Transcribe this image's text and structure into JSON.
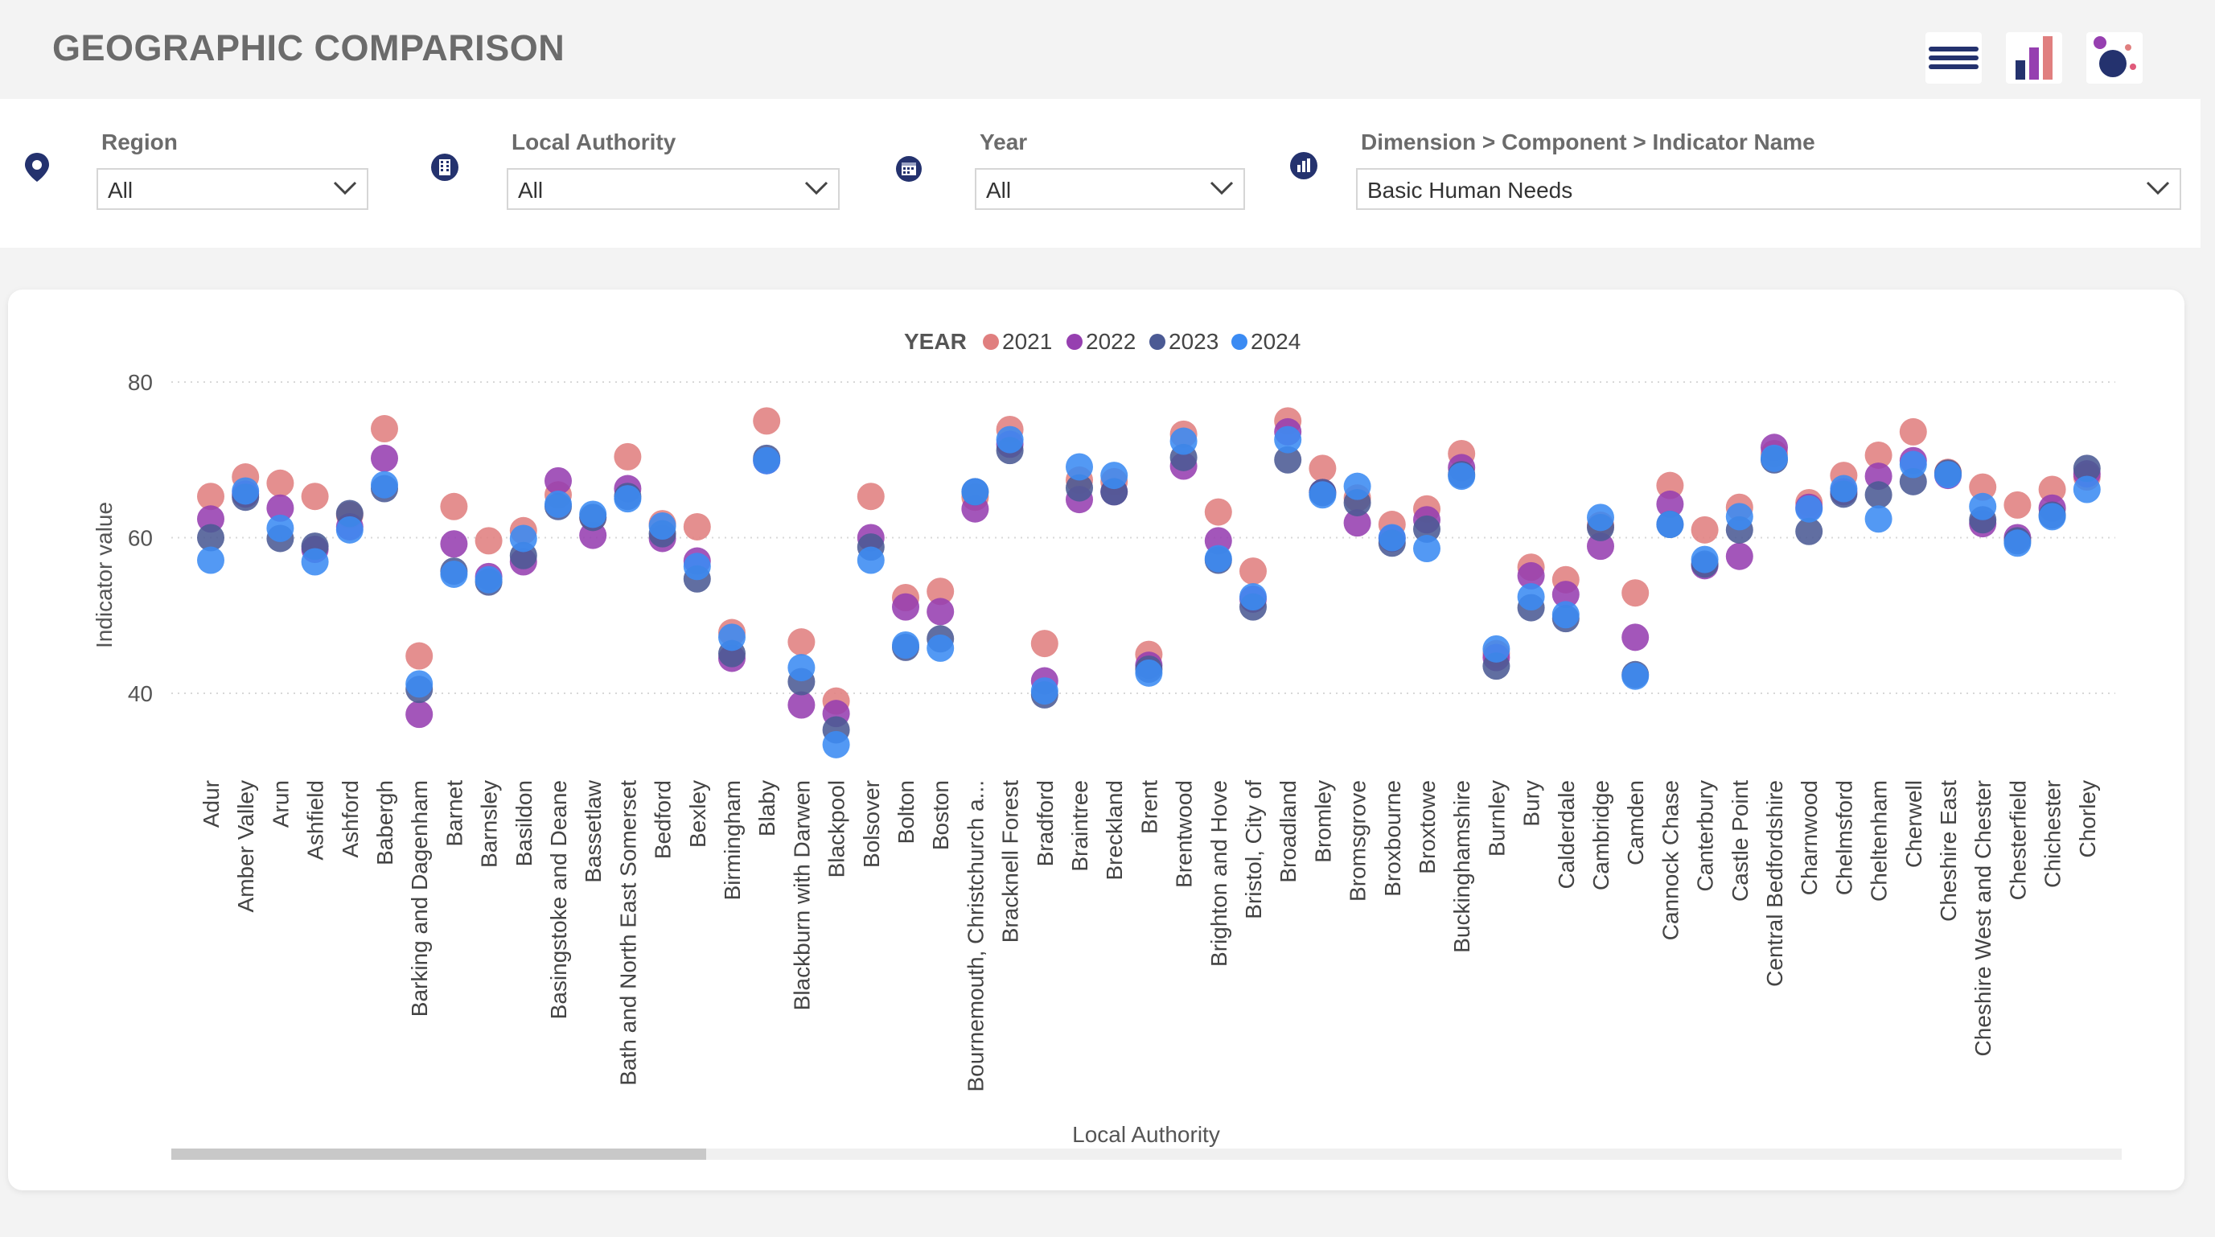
{
  "header": {
    "title": "GEOGRAPHIC COMPARISON",
    "buttons": [
      {
        "icon": "menu-icon"
      },
      {
        "icon": "bar-chart-icon"
      },
      {
        "icon": "bubble-chart-icon"
      }
    ]
  },
  "filters": {
    "region": {
      "label": "Region",
      "value": "All",
      "icon": "map-pin-icon"
    },
    "local_authority": {
      "label": "Local Authority",
      "value": "All",
      "icon": "building-icon"
    },
    "year": {
      "label": "Year",
      "value": "All",
      "icon": "calendar-icon"
    },
    "indicator": {
      "label": "Dimension > Component > Indicator Name",
      "value": "Basic Human Needs",
      "icon": "chart-icon"
    }
  },
  "colors": {
    "s2021": "#e07f7f",
    "s2022": "#963fb0",
    "s2023": "#4b5a94",
    "s2024": "#3b8bf3"
  },
  "chart_data": {
    "type": "scatter",
    "legend_title": "YEAR",
    "legend_position": "top-center",
    "xlabel": "Local Authority",
    "ylabel": "Indicator value",
    "yticks": [
      40,
      60,
      80
    ],
    "ylim": [
      32.5,
      81
    ],
    "grid": true,
    "categories": [
      "Adur",
      "Amber Valley",
      "Arun",
      "Ashfield",
      "Ashford",
      "Babergh",
      "Barking and Dagenham",
      "Barnet",
      "Barnsley",
      "Basildon",
      "Basingstoke and Deane",
      "Bassetlaw",
      "Bath and North East Somerset",
      "Bedford",
      "Bexley",
      "Birmingham",
      "Blaby",
      "Blackburn with Darwen",
      "Blackpool",
      "Bolsover",
      "Bolton",
      "Boston",
      "Bournemouth, Christchurch a...",
      "Bracknell Forest",
      "Bradford",
      "Braintree",
      "Breckland",
      "Brent",
      "Brentwood",
      "Brighton and Hove",
      "Bristol, City of",
      "Broadland",
      "Bromley",
      "Bromsgrove",
      "Broxbourne",
      "Broxtowe",
      "Buckinghamshire",
      "Burnley",
      "Bury",
      "Calderdale",
      "Cambridge",
      "Camden",
      "Cannock Chase",
      "Canterbury",
      "Castle Point",
      "Central Bedfordshire",
      "Charnwood",
      "Chelmsford",
      "Cheltenham",
      "Cherwell",
      "Cheshire East",
      "Cheshire West and Chester",
      "Chesterfield",
      "Chichester",
      "Chorley"
    ],
    "series": [
      {
        "name": "2021",
        "values": [
          65.3,
          67.8,
          67.0,
          65.3,
          62.9,
          74.0,
          44.8,
          64.0,
          59.6,
          60.9,
          65.5,
          62.6,
          70.4,
          61.8,
          61.4,
          47.8,
          75.0,
          46.6,
          39.0,
          65.3,
          52.3,
          53.1,
          65.2,
          73.9,
          46.4,
          67.4,
          67.2,
          45.0,
          73.3,
          63.3,
          55.7,
          75.0,
          68.9,
          65.1,
          61.7,
          63.7,
          70.8,
          45.1,
          56.2,
          54.6,
          61.6,
          52.9,
          66.7,
          61.0,
          63.9,
          70.8,
          64.5,
          68.0,
          70.6,
          73.6,
          68.4,
          66.5,
          64.2,
          66.2,
          67.8
        ]
      },
      {
        "name": "2022",
        "values": [
          62.4,
          65.6,
          63.8,
          58.5,
          61.4,
          70.2,
          37.3,
          59.2,
          55.0,
          56.9,
          67.3,
          60.3,
          66.3,
          59.9,
          57.0,
          44.5,
          69.9,
          38.5,
          37.4,
          60.0,
          51.1,
          50.5,
          63.7,
          72.0,
          41.6,
          64.9,
          65.9,
          43.6,
          69.2,
          59.6,
          52.1,
          73.6,
          65.8,
          61.9,
          59.9,
          62.3,
          69.0,
          44.6,
          55.1,
          52.7,
          58.9,
          47.2,
          64.3,
          56.4,
          57.6,
          71.6,
          63.9,
          65.9,
          67.9,
          69.9,
          68.0,
          61.8,
          60.0,
          63.8,
          68.2
        ]
      },
      {
        "name": "2023",
        "values": [
          60.0,
          65.2,
          59.9,
          58.9,
          63.1,
          66.3,
          40.5,
          55.7,
          54.3,
          57.7,
          64.0,
          62.6,
          65.3,
          60.5,
          54.7,
          45.1,
          70.2,
          41.5,
          35.3,
          58.8,
          45.9,
          47.0,
          65.9,
          71.2,
          39.8,
          66.4,
          65.9,
          43.1,
          70.3,
          57.1,
          51.1,
          70.0,
          65.8,
          64.5,
          59.3,
          61.1,
          68.1,
          43.5,
          51.0,
          49.6,
          61.3,
          42.4,
          61.7,
          56.6,
          61.0,
          70.0,
          60.8,
          65.6,
          65.5,
          67.2,
          68.3,
          62.3,
          59.6,
          62.9,
          68.9
        ]
      },
      {
        "name": "2024",
        "values": [
          57.1,
          66.0,
          61.2,
          56.9,
          61.0,
          66.8,
          41.2,
          55.3,
          54.6,
          59.9,
          64.3,
          63.0,
          65.0,
          61.5,
          56.3,
          47.2,
          69.9,
          43.3,
          33.4,
          57.1,
          46.2,
          45.8,
          65.9,
          72.6,
          40.3,
          69.1,
          68.0,
          42.6,
          72.4,
          57.3,
          52.4,
          72.6,
          65.5,
          66.6,
          60.0,
          58.6,
          67.9,
          45.7,
          52.4,
          50.1,
          62.6,
          42.2,
          61.7,
          57.2,
          62.7,
          70.2,
          63.7,
          66.3,
          62.4,
          69.4,
          68.1,
          64.0,
          59.3,
          62.7,
          66.2
        ]
      }
    ]
  }
}
